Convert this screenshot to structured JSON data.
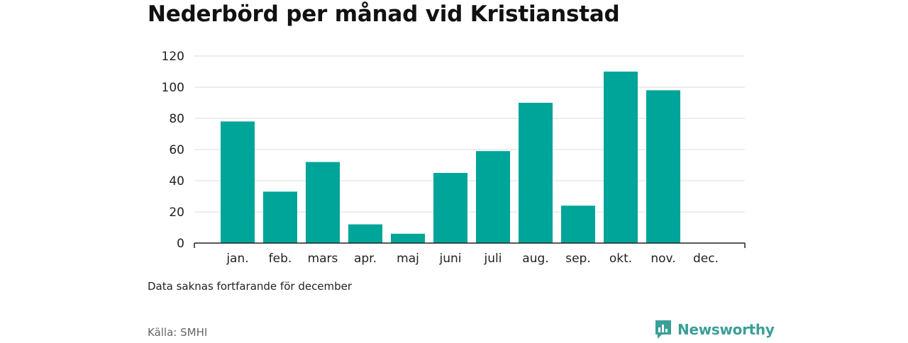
{
  "chart_data": {
    "type": "bar",
    "title": "Nederbörd per månad vid Kristianstad",
    "categories": [
      "jan.",
      "feb.",
      "mars",
      "apr.",
      "maj",
      "juni",
      "juli",
      "aug.",
      "sep.",
      "okt.",
      "nov.",
      "dec."
    ],
    "values": [
      78,
      33,
      52,
      12,
      6,
      45,
      59,
      90,
      24,
      110,
      98,
      null
    ],
    "ylim": [
      0,
      120
    ],
    "yticks": [
      0,
      20,
      40,
      60,
      80,
      100,
      120
    ],
    "xlabel": "",
    "ylabel": "",
    "grid": true,
    "legend": "none",
    "bar_color": "#00a599"
  },
  "note": "Data saknas fortfarande för december",
  "source": "Källa: SMHI",
  "brand": {
    "name": "Newsworthy",
    "icon": "newsworthy-logo-icon",
    "color": "#3a9f97"
  }
}
